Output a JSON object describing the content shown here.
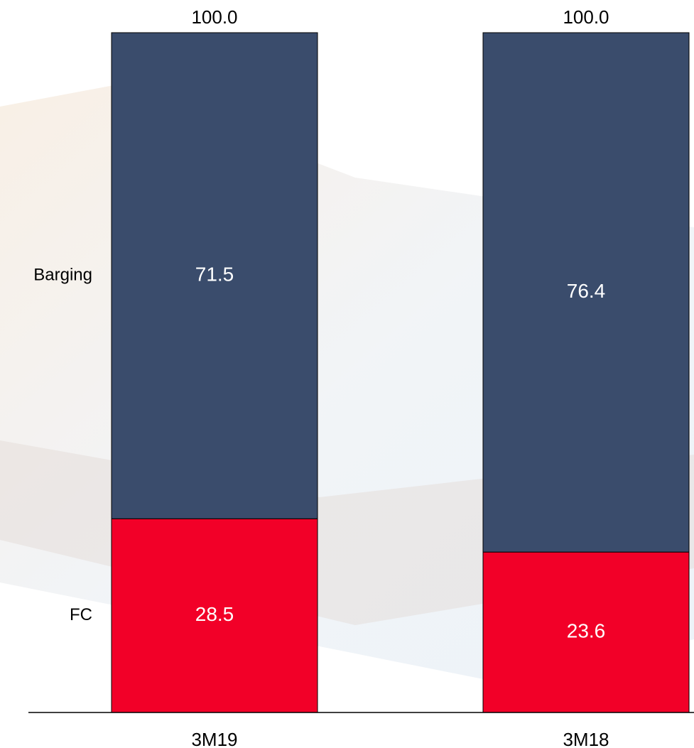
{
  "chart_data": {
    "type": "stacked_bar",
    "categories": [
      "3M19",
      "3M18"
    ],
    "series": [
      {
        "name": "FC",
        "color": "#f20028",
        "values": [
          28.5,
          23.6
        ]
      },
      {
        "name": "Barging",
        "color": "#3a4c6c",
        "values": [
          71.5,
          76.4
        ]
      }
    ],
    "totals": {
      "values": [
        100,
        100
      ],
      "value_labels": [
        "100.0",
        "100.0"
      ]
    },
    "ylim": [
      0,
      100
    ]
  }
}
